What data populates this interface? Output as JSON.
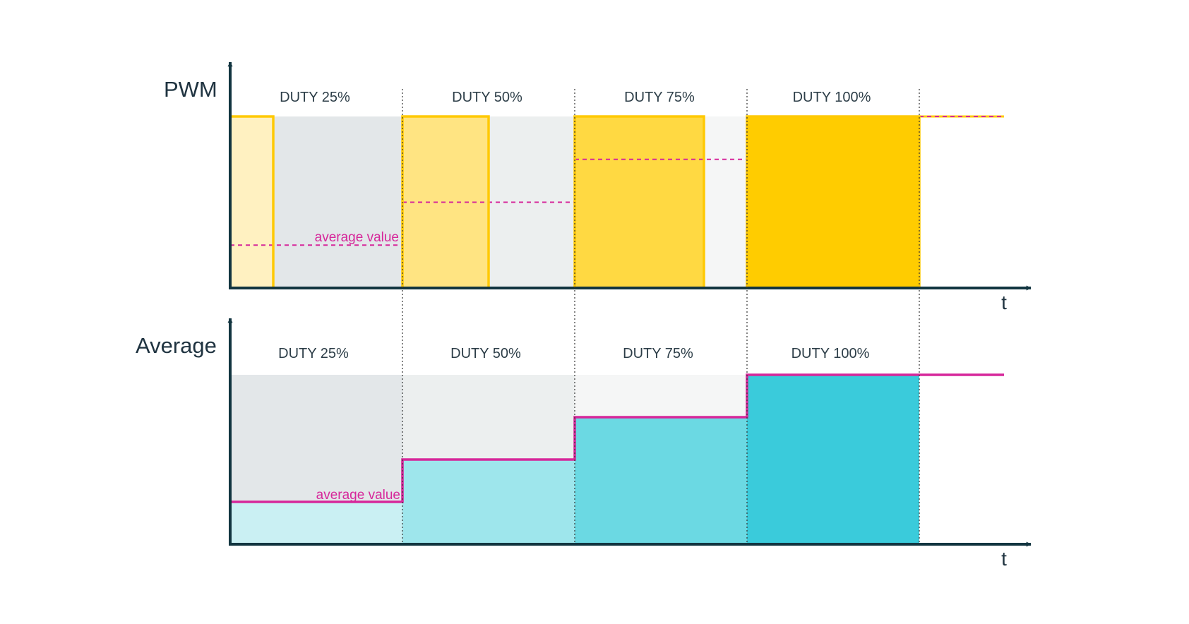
{
  "colors": {
    "axis": "#123540",
    "pwm_line": "#ffc904",
    "average_line": "#d6279a",
    "divider": "#333333",
    "off_backgrounds": [
      "#e3e7e9",
      "#ecefef",
      "#f5f6f6"
    ],
    "pwm_on_fills": [
      "#fff1c1",
      "#ffe482",
      "#ffd942",
      "#ffcc00"
    ],
    "average_fills": [
      "#caf0f3",
      "#9ee6ec",
      "#6bd9e3",
      "#3acbdb"
    ],
    "text": "#2d3e48"
  },
  "periods": [
    {
      "label": "DUTY 25%",
      "duty": 0.25
    },
    {
      "label": "DUTY 50%",
      "duty": 0.5
    },
    {
      "label": "DUTY 75%",
      "duty": 0.75
    },
    {
      "label": "DUTY 100%",
      "duty": 1.0
    }
  ],
  "pwm_panel": {
    "title": "PWM",
    "time_label": "t",
    "annotation": "average value"
  },
  "average_panel": {
    "title": "Average",
    "time_label": "t",
    "annotation": "average value"
  }
}
